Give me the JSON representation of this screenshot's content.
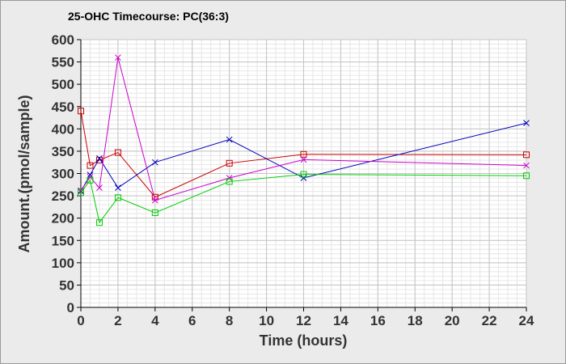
{
  "chart_data": {
    "type": "line",
    "title": "25-OHC Timecourse: PC(36:3)",
    "xlabel": "Time (hours)",
    "ylabel": "Amount.(pmol/sample)",
    "xlim": [
      0,
      24
    ],
    "ylim": [
      0,
      600
    ],
    "x_ticks": [
      0,
      2,
      4,
      6,
      8,
      10,
      12,
      14,
      16,
      18,
      20,
      22,
      24
    ],
    "y_ticks": [
      0,
      50,
      100,
      150,
      200,
      250,
      300,
      350,
      400,
      450,
      500,
      550,
      600
    ],
    "grid": true,
    "legend": "none",
    "series": [
      {
        "color": "#cc0000",
        "marker": "square",
        "points": [
          [
            0,
            440
          ],
          [
            0.5,
            318
          ],
          [
            1,
            330
          ],
          [
            2,
            347
          ],
          [
            4,
            247
          ],
          [
            8,
            323
          ],
          [
            12,
            343
          ],
          [
            24,
            342
          ]
        ]
      },
      {
        "color": "#0000bb",
        "marker": "x",
        "points": [
          [
            0,
            260
          ],
          [
            0.5,
            297
          ],
          [
            1,
            334
          ],
          [
            2,
            268
          ],
          [
            4,
            325
          ],
          [
            8,
            376
          ],
          [
            12,
            290
          ],
          [
            24,
            413
          ]
        ]
      },
      {
        "color": "#cc00cc",
        "marker": "x",
        "points": [
          [
            0,
            262
          ],
          [
            0.5,
            292
          ],
          [
            1,
            268
          ],
          [
            2,
            560
          ],
          [
            4,
            240
          ],
          [
            8,
            290
          ],
          [
            12,
            331
          ],
          [
            24,
            318
          ]
        ]
      },
      {
        "color": "#00cc00",
        "marker": "square",
        "points": [
          [
            0,
            257
          ],
          [
            0.5,
            285
          ],
          [
            1,
            190
          ],
          [
            2,
            246
          ],
          [
            4,
            212
          ],
          [
            8,
            282
          ],
          [
            12,
            298
          ],
          [
            24,
            295
          ]
        ]
      }
    ]
  }
}
